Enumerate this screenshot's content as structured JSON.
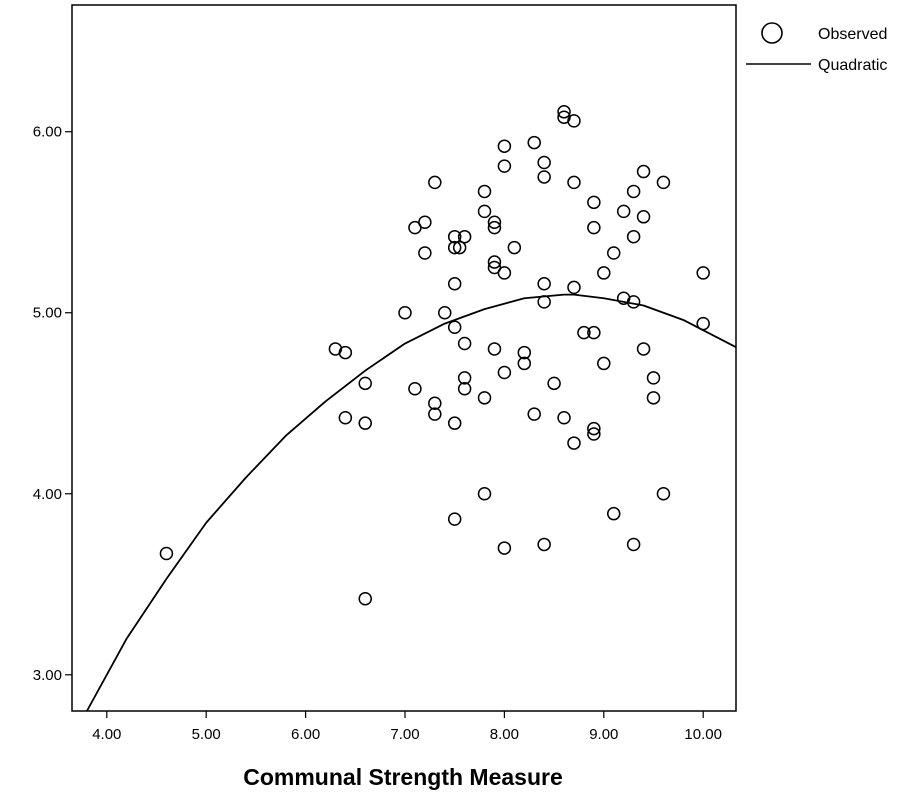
{
  "chart_data": {
    "type": "scatter",
    "title": "",
    "xlabel": "Communal Strength Measure",
    "ylabel": "",
    "xlim": [
      3.65,
      10.33
    ],
    "ylim": [
      2.8,
      6.7
    ],
    "xticks": [
      4,
      5,
      6,
      7,
      8,
      9,
      10
    ],
    "xtick_labels": [
      "4.00",
      "5.00",
      "6.00",
      "7.00",
      "8.00",
      "9.00",
      "10.00"
    ],
    "yticks": [
      3,
      4,
      5,
      6
    ],
    "ytick_labels": [
      "3.00",
      "4.00",
      "5.00",
      "6.00"
    ],
    "grid": false,
    "legend_position": "top-right, outside plot",
    "series": [
      {
        "name": "Observed",
        "kind": "points",
        "marker": "open-circle",
        "color": "#000000",
        "points": [
          [
            4.6,
            3.67
          ],
          [
            6.3,
            4.8
          ],
          [
            6.4,
            4.78
          ],
          [
            6.4,
            4.42
          ],
          [
            6.6,
            4.61
          ],
          [
            6.6,
            4.39
          ],
          [
            6.6,
            3.42
          ],
          [
            7.0,
            5.0
          ],
          [
            7.1,
            5.47
          ],
          [
            7.1,
            4.58
          ],
          [
            7.2,
            5.5
          ],
          [
            7.2,
            5.33
          ],
          [
            7.3,
            5.72
          ],
          [
            7.3,
            4.5
          ],
          [
            7.3,
            4.44
          ],
          [
            7.4,
            5.0
          ],
          [
            7.5,
            5.42
          ],
          [
            7.5,
            5.36
          ],
          [
            7.5,
            5.16
          ],
          [
            7.5,
            4.92
          ],
          [
            7.5,
            4.39
          ],
          [
            7.5,
            3.86
          ],
          [
            7.55,
            5.36
          ],
          [
            7.6,
            5.42
          ],
          [
            7.6,
            4.83
          ],
          [
            7.6,
            4.64
          ],
          [
            7.6,
            4.58
          ],
          [
            7.8,
            5.67
          ],
          [
            7.8,
            5.56
          ],
          [
            7.8,
            4.53
          ],
          [
            7.8,
            4.0
          ],
          [
            7.9,
            5.5
          ],
          [
            7.9,
            5.47
          ],
          [
            7.9,
            5.28
          ],
          [
            7.9,
            5.25
          ],
          [
            7.9,
            4.8
          ],
          [
            8.0,
            5.92
          ],
          [
            8.0,
            5.81
          ],
          [
            8.0,
            5.22
          ],
          [
            8.0,
            4.67
          ],
          [
            8.0,
            3.7
          ],
          [
            8.1,
            5.36
          ],
          [
            8.2,
            4.78
          ],
          [
            8.2,
            4.72
          ],
          [
            8.3,
            5.94
          ],
          [
            8.3,
            4.44
          ],
          [
            8.4,
            5.83
          ],
          [
            8.4,
            5.75
          ],
          [
            8.4,
            5.16
          ],
          [
            8.4,
            5.06
          ],
          [
            8.4,
            3.72
          ],
          [
            8.5,
            4.61
          ],
          [
            8.6,
            6.11
          ],
          [
            8.6,
            6.08
          ],
          [
            8.6,
            4.42
          ],
          [
            8.7,
            6.06
          ],
          [
            8.7,
            5.72
          ],
          [
            8.7,
            5.14
          ],
          [
            8.7,
            4.28
          ],
          [
            8.8,
            4.89
          ],
          [
            8.9,
            5.61
          ],
          [
            8.9,
            5.47
          ],
          [
            8.9,
            4.89
          ],
          [
            8.9,
            4.36
          ],
          [
            8.9,
            4.33
          ],
          [
            9.0,
            5.22
          ],
          [
            9.0,
            4.72
          ],
          [
            9.1,
            5.33
          ],
          [
            9.1,
            3.89
          ],
          [
            9.2,
            5.56
          ],
          [
            9.2,
            5.08
          ],
          [
            9.3,
            5.67
          ],
          [
            9.3,
            5.42
          ],
          [
            9.3,
            5.06
          ],
          [
            9.3,
            3.72
          ],
          [
            9.4,
            5.78
          ],
          [
            9.4,
            5.53
          ],
          [
            9.4,
            4.8
          ],
          [
            9.5,
            4.64
          ],
          [
            9.5,
            4.53
          ],
          [
            9.6,
            5.72
          ],
          [
            9.6,
            4.0
          ],
          [
            10.0,
            5.22
          ],
          [
            10.0,
            4.94
          ]
        ]
      },
      {
        "name": "Quadratic",
        "kind": "fit-curve",
        "color": "#000000",
        "x": [
          3.8,
          4.2,
          4.6,
          5.0,
          5.4,
          5.8,
          6.2,
          6.6,
          7.0,
          7.4,
          7.8,
          8.2,
          8.6,
          8.7,
          9.0,
          9.4,
          9.8,
          10.33
        ],
        "y": [
          2.8,
          3.2,
          3.53,
          3.84,
          4.09,
          4.32,
          4.51,
          4.68,
          4.83,
          4.94,
          5.02,
          5.08,
          5.1,
          5.1,
          5.08,
          5.04,
          4.96,
          4.81
        ]
      }
    ]
  }
}
